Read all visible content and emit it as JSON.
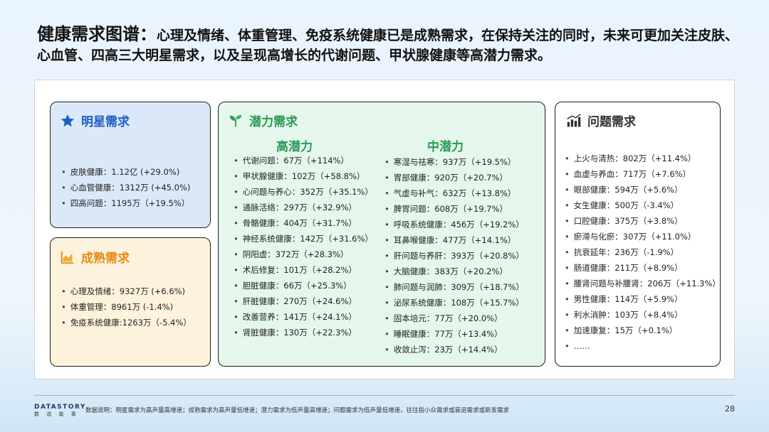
{
  "headline": {
    "lead": "健康需求图谱：",
    "text": "心理及情绪、体重管理、免疫系统健康已是成熟需求，在保持关注的同时，未来可更加关注皮肤、心血管、四高三大明星需求，以及呈现高增长的代谢问题、甲状腺健康等高潜力需求。"
  },
  "star": {
    "title": "明星需求",
    "icon": "star-icon",
    "items": [
      "皮肤健康：1.12亿 (+29.0%)",
      "心血管健康：1312万 (+45.0%)",
      "四高问题：1195万（+19.5%）"
    ]
  },
  "mature": {
    "title": "成熟需求",
    "icon": "area-chart-icon",
    "items": [
      "心理及情绪：9327万 (+6.6%)",
      "体重管理：8961万 (-1.4%)",
      "免疫系统健康:1263万（-5.4%）"
    ]
  },
  "potential": {
    "title": "潜力需求",
    "icon": "sprout-icon",
    "high": {
      "heading": "高潜力",
      "items": [
        "代谢问题：67万（+114%）",
        "甲状腺健康：102万（+58.8%）",
        "心问题与养心：352万（+35.1%）",
        "通脉活络：297万（+32.9%）",
        "骨骼健康：404万（+31.7%）",
        "神经系统健康：142万（+31.6%）",
        "阴阳虚：372万（+28.3%）",
        "术后修复：101万（+28.2%）",
        "胆脏健康：66万（+25.3%）",
        "肝脏健康：270万（+24.6%）",
        "改善营养：141万（+24.1%）",
        "肾脏健康：130万（+22.3%）"
      ]
    },
    "mid": {
      "heading": "中潜力",
      "items": [
        "寒湿与祛寒：937万（+19.5%）",
        "胃部健康：920万（+20.7%）",
        "气虚与补气：632万（+13.8%）",
        "脾胃问题：608万（+19.7%）",
        "呼吸系统健康：456万（+19.2%）",
        "耳鼻喉健康：477万（+14.1%）",
        "肝问题与养肝：393万（+20.8%）",
        "大脑健康：383万（+20.2%）",
        "肺问题与润肺：309万（+18.7%）",
        "泌尿系统健康：108万（+15.7%）",
        "固本培元：77万（+20.0%）",
        "睡眠健康：77万（+13.4%）",
        "收敛止泻：23万（+14.4%）"
      ]
    }
  },
  "problem": {
    "title": "问题需求",
    "icon": "bar-chart-icon",
    "items": [
      "上火与清热：802万（+11.4%）",
      "血虚与养血：717万（+7.6%）",
      "眼部健康：594万（+5.6%）",
      "女生健康：500万（-3.4%）",
      "口腔健康：375万（+3.8%）",
      "瘀滞与化瘀：307万（+11.0%）",
      "抗衰延年：236万（-1.9%）",
      "肠道健康：211万（+8.9%）",
      "腰肾问题与补腰肾：206万（+11.3%）",
      "男性健康：114万（+5.9%）",
      "利水消肿：103万（+8.4%）",
      "加速康复：15万（+0.1%）",
      "……"
    ]
  },
  "footer": {
    "logo": "DATASTORY",
    "logo_sub": "数 说 故 事",
    "note": "数据说明：明星需求为高声量高增速；成熟需求为高声量低增速；潜力需求为低声量高增速；问题需求为低声量低增速，往往指小众需求或衰退需求或新发需求",
    "page": "28"
  },
  "colors": {
    "star_bg": "#dbe8f7",
    "mature_bg": "#fdf3dc",
    "potential_bg": "#e5f6ec",
    "accent_blue": "#1f5fc4",
    "accent_orange": "#e58b1a",
    "accent_green": "#2a9a55"
  }
}
